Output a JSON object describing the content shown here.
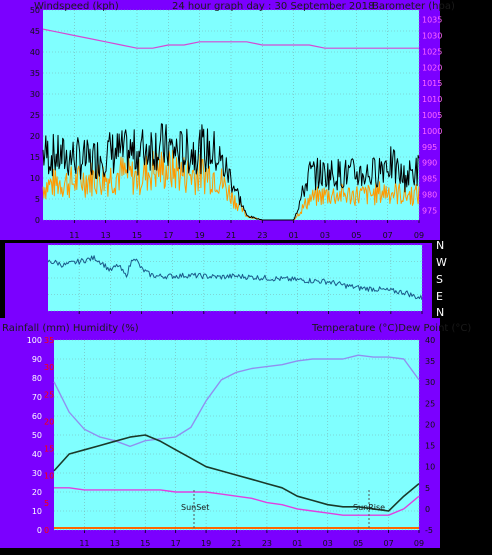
{
  "colors": {
    "frame": "#7b00ff",
    "plot_bg": "#80ffff",
    "grid": "#7ab0b0",
    "wind_speed": "#000000",
    "wind_gust": "#ff9900",
    "barometer": "#d44ad4",
    "direction": "#1a5a8a",
    "temperature": "#1a3a2a",
    "dewpoint": "#e040e0",
    "humidity": "#9090f0",
    "rain_ticks": "#ff0000"
  },
  "header": {
    "left": "Windspeed (kph)",
    "center": "24 hour graph day : 30 September 2018",
    "right": "Barometer (hpa)"
  },
  "middle": {
    "labels_right": [
      "N",
      "W",
      "S",
      "E",
      "N"
    ]
  },
  "bottom_header": {
    "left": "Rainfall (mm)  Humidity (%)",
    "right": "Temperature (°C)Dew Point (°C)"
  },
  "markers": {
    "sunset": "SunSet",
    "sunrise": "SunRise"
  },
  "x_ticks": [
    "11",
    "13",
    "15",
    "17",
    "19",
    "21",
    "23",
    "01",
    "03",
    "05",
    "07",
    "09"
  ],
  "chart_data": [
    {
      "type": "line",
      "title": "24 hour graph day : 30 September 2018",
      "ylabel": "Windspeed (kph)",
      "y2label": "Barometer (hpa)",
      "ylim": [
        0,
        50
      ],
      "y_ticks": [
        0,
        5,
        10,
        15,
        20,
        25,
        30,
        35,
        40,
        45,
        50
      ],
      "y2lim": [
        972,
        1038
      ],
      "y2_ticks": [
        975,
        980,
        985,
        990,
        995,
        1000,
        1005,
        1010,
        1015,
        1020,
        1025,
        1030,
        1035
      ],
      "x": [
        9.0,
        10.0,
        11.0,
        12.0,
        13.0,
        14.0,
        15.0,
        16.0,
        17.0,
        18.0,
        19.0,
        20.0,
        21.0,
        22.0,
        23.0,
        24.0,
        25.0,
        26.0,
        27.0,
        28.0,
        29.0,
        30.0,
        31.0,
        32.0,
        33.0
      ],
      "series": [
        {
          "name": "Barometer",
          "values": [
            1032,
            1031,
            1030,
            1029,
            1028,
            1027,
            1026,
            1026,
            1027,
            1027,
            1028,
            1028,
            1028,
            1028,
            1027,
            1027,
            1027,
            1027,
            1026,
            1026,
            1026,
            1026,
            1026,
            1026,
            1026
          ]
        },
        {
          "name": "Wind",
          "values": [
            8,
            9,
            9,
            10,
            10,
            11,
            10,
            12,
            12,
            11,
            11,
            11,
            6,
            1,
            0,
            0,
            0,
            5,
            6,
            6,
            6,
            6,
            7,
            6,
            6
          ]
        },
        {
          "name": "Gust",
          "values": [
            16,
            15,
            15,
            14,
            16,
            16,
            16,
            18,
            17,
            16,
            17,
            16,
            10,
            1,
            0,
            0,
            0,
            11,
            11,
            11,
            11,
            11,
            14,
            10,
            12
          ]
        }
      ]
    },
    {
      "type": "line",
      "ylabel": "Wind direction",
      "ylim": [
        0,
        360
      ],
      "x": [
        9.0,
        9.5,
        10.0,
        10.5,
        11.0,
        11.5,
        12.0,
        12.5,
        13.0,
        13.5,
        14.0,
        14.5,
        15.0,
        15.5,
        16.0,
        17.0,
        18.0,
        19.0,
        20.0,
        21.0,
        22.0,
        23.0,
        24.0,
        25.0,
        26.0,
        27.0,
        28.0,
        29.0,
        30.0,
        31.0,
        32.0,
        32.5,
        33.0
      ],
      "series": [
        {
          "name": "Direction",
          "values": [
            270,
            265,
            250,
            260,
            270,
            280,
            290,
            260,
            220,
            250,
            190,
            300,
            230,
            200,
            190,
            190,
            195,
            190,
            185,
            190,
            185,
            180,
            175,
            170,
            165,
            160,
            140,
            125,
            120,
            110,
            100,
            80,
            70
          ]
        }
      ]
    },
    {
      "type": "line",
      "ylabel": "Rainfall (mm)  Humidity (%)",
      "y2label": "Temperature (°C)Dew Point (°C)",
      "ylim": [
        0,
        100
      ],
      "y_ticks": [
        0,
        10,
        20,
        30,
        40,
        50,
        60,
        70,
        80,
        90,
        100
      ],
      "y2lim": [
        -5,
        40
      ],
      "y2_ticks": [
        -5,
        0,
        5,
        10,
        15,
        20,
        25,
        30,
        35,
        40
      ],
      "rain_ticks": [
        0,
        5,
        10,
        15,
        20,
        25,
        30,
        35
      ],
      "x": [
        9.0,
        10.0,
        11.0,
        12.0,
        13.0,
        14.0,
        15.0,
        16.0,
        17.0,
        18.0,
        19.0,
        20.0,
        21.0,
        22.0,
        23.0,
        24.0,
        25.0,
        26.0,
        27.0,
        28.0,
        29.0,
        30.0,
        31.0,
        32.0,
        33.0
      ],
      "series": [
        {
          "name": "Humidity",
          "values": [
            78,
            62,
            53,
            49,
            47,
            44,
            47,
            48,
            49,
            54,
            68,
            79,
            83,
            85,
            86,
            87,
            89,
            90,
            90,
            90,
            92,
            91,
            91,
            90,
            79
          ]
        },
        {
          "name": "Temperature",
          "values": [
            9,
            13,
            14,
            15,
            16,
            17,
            17.5,
            16,
            14,
            12,
            10,
            9,
            8,
            7,
            6,
            5,
            3,
            2,
            1,
            0.5,
            0.5,
            0,
            -0.5,
            3,
            6
          ]
        },
        {
          "name": "Dew Point",
          "values": [
            5,
            5,
            4.5,
            4.5,
            4.5,
            4.5,
            4.5,
            4.5,
            4,
            4,
            4,
            3.5,
            3,
            2.5,
            1.5,
            1,
            0,
            -0.5,
            -1,
            -1.5,
            -1.5,
            -1.5,
            -1.5,
            0,
            3
          ]
        }
      ]
    }
  ]
}
